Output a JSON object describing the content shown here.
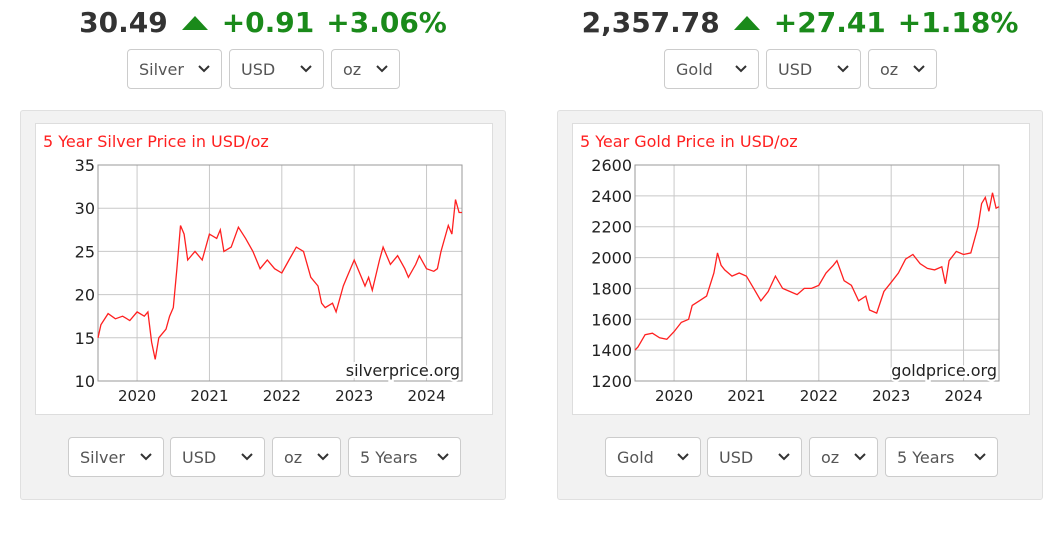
{
  "widgets": [
    {
      "price": "30.49",
      "change": "+0.91",
      "change_pct": "+3.06%",
      "selectors": [
        "Silver",
        "USD",
        "oz"
      ],
      "chart_selectors": [
        "Silver",
        "USD",
        "oz",
        "5 Years"
      ]
    },
    {
      "price": "2,357.78",
      "change": "+27.41",
      "change_pct": "+1.18%",
      "selectors": [
        "Gold",
        "USD",
        "oz"
      ],
      "chart_selectors": [
        "Gold",
        "USD",
        "oz",
        "5 Years"
      ]
    }
  ],
  "chart_data": [
    {
      "type": "line",
      "title": "5 Year Silver Price in USD/oz",
      "watermark": "silverprice.org",
      "x": [
        2019.46,
        2019.5,
        2019.6,
        2019.7,
        2019.8,
        2019.9,
        2020.0,
        2020.1,
        2020.15,
        2020.2,
        2020.25,
        2020.3,
        2020.4,
        2020.45,
        2020.5,
        2020.55,
        2020.6,
        2020.65,
        2020.7,
        2020.8,
        2020.9,
        2021.0,
        2021.1,
        2021.15,
        2021.2,
        2021.3,
        2021.4,
        2021.5,
        2021.6,
        2021.7,
        2021.8,
        2021.9,
        2022.0,
        2022.1,
        2022.2,
        2022.3,
        2022.4,
        2022.5,
        2022.55,
        2022.6,
        2022.7,
        2022.75,
        2022.85,
        2022.9,
        2023.0,
        2023.1,
        2023.15,
        2023.2,
        2023.25,
        2023.35,
        2023.4,
        2023.5,
        2023.6,
        2023.7,
        2023.75,
        2023.85,
        2023.9,
        2024.0,
        2024.1,
        2024.15,
        2024.2,
        2024.3,
        2024.35,
        2024.4,
        2024.45,
        2024.49
      ],
      "series": [
        {
          "color": "#ff2020",
          "values": [
            15,
            16.5,
            17.8,
            17.2,
            17.5,
            17,
            18,
            17.5,
            18,
            14.5,
            12.5,
            15,
            16,
            17.5,
            18.5,
            23,
            28,
            27,
            24,
            25,
            24,
            27,
            26.5,
            27.5,
            25,
            25.5,
            27.8,
            26.5,
            25,
            23,
            24,
            23,
            22.5,
            24,
            25.5,
            25,
            22,
            21,
            19,
            18.5,
            19,
            18,
            21,
            22,
            24,
            22,
            21,
            22,
            20.5,
            24,
            25.5,
            23.5,
            24.5,
            23,
            22,
            23.5,
            24.5,
            23,
            22.7,
            23,
            25,
            28,
            27,
            31,
            29.5,
            29.5
          ]
        }
      ],
      "xlim": [
        2019.46,
        2024.49
      ],
      "xticks": [
        2020,
        2021,
        2022,
        2023,
        2024
      ],
      "ylim": [
        10,
        35
      ],
      "yticks": [
        10,
        15,
        20,
        25,
        30,
        35
      ],
      "grid": true
    },
    {
      "type": "line",
      "title": "5 Year Gold Price in USD/oz",
      "watermark": "goldprice.org",
      "x": [
        2019.46,
        2019.5,
        2019.6,
        2019.7,
        2019.8,
        2019.9,
        2020.0,
        2020.1,
        2020.2,
        2020.25,
        2020.35,
        2020.45,
        2020.55,
        2020.6,
        2020.65,
        2020.7,
        2020.8,
        2020.9,
        2021.0,
        2021.1,
        2021.2,
        2021.3,
        2021.4,
        2021.5,
        2021.6,
        2021.7,
        2021.8,
        2021.9,
        2022.0,
        2022.1,
        2022.2,
        2022.25,
        2022.35,
        2022.45,
        2022.55,
        2022.65,
        2022.7,
        2022.8,
        2022.9,
        2023.0,
        2023.1,
        2023.2,
        2023.3,
        2023.4,
        2023.5,
        2023.6,
        2023.7,
        2023.75,
        2023.8,
        2023.9,
        2024.0,
        2024.1,
        2024.2,
        2024.25,
        2024.3,
        2024.35,
        2024.4,
        2024.45,
        2024.49
      ],
      "series": [
        {
          "color": "#ff2020",
          "values": [
            1400,
            1420,
            1500,
            1510,
            1480,
            1470,
            1520,
            1580,
            1600,
            1690,
            1720,
            1750,
            1900,
            2030,
            1950,
            1920,
            1880,
            1900,
            1880,
            1800,
            1720,
            1780,
            1880,
            1800,
            1780,
            1760,
            1800,
            1800,
            1820,
            1900,
            1950,
            1980,
            1850,
            1820,
            1720,
            1750,
            1660,
            1640,
            1780,
            1840,
            1900,
            1990,
            2020,
            1960,
            1930,
            1920,
            1940,
            1830,
            1980,
            2040,
            2020,
            2030,
            2200,
            2350,
            2390,
            2300,
            2420,
            2320,
            2330
          ]
        }
      ],
      "xlim": [
        2019.46,
        2024.49
      ],
      "xticks": [
        2020,
        2021,
        2022,
        2023,
        2024
      ],
      "ylim": [
        1200,
        2600
      ],
      "yticks": [
        1200,
        1400,
        1600,
        1800,
        2000,
        2200,
        2400,
        2600
      ],
      "grid": true
    }
  ]
}
